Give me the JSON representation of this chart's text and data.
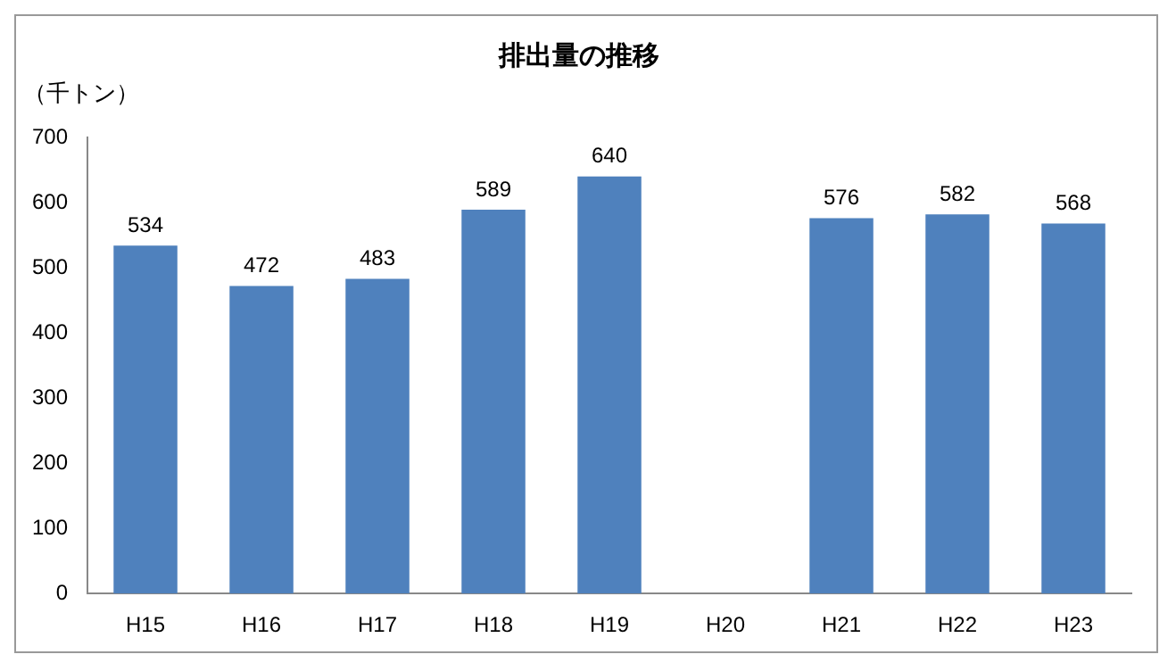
{
  "chart_data": {
    "type": "bar",
    "title": "排出量の推移",
    "ylabel": "（千トン）",
    "categories": [
      "H15",
      "H16",
      "H17",
      "H18",
      "H19",
      "H20",
      "H21",
      "H22",
      "H23"
    ],
    "values": [
      534,
      472,
      483,
      589,
      640,
      null,
      576,
      582,
      568
    ],
    "color": "#4f81bd",
    "ylim": [
      0,
      700
    ],
    "yticks": [
      0,
      100,
      200,
      300,
      400,
      500,
      600,
      700
    ],
    "grid": false,
    "legend": false,
    "data_labels": true
  }
}
